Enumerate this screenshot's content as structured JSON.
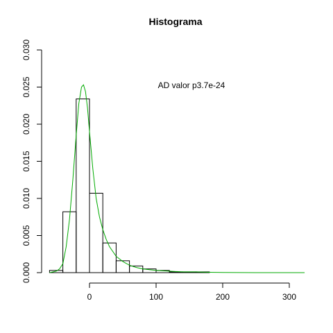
{
  "chart_data": {
    "type": "bar",
    "title": "Histograma",
    "xlabel": "",
    "ylabel": "",
    "annotation": "AD valor p3.7e-24",
    "xlim": [
      -60,
      330
    ],
    "ylim": [
      0,
      0.03
    ],
    "x_ticks": [
      0,
      100,
      200,
      300
    ],
    "x_tick_labels": [
      "0",
      "100",
      "200",
      "300"
    ],
    "y_ticks": [
      0.0,
      0.005,
      0.01,
      0.015,
      0.02,
      0.025,
      0.03
    ],
    "y_tick_labels": [
      "0.000",
      "0.005",
      "0.010",
      "0.015",
      "0.020",
      "0.025",
      "0.030"
    ],
    "bins": [
      {
        "start": -60,
        "end": -40,
        "density": 0.0003
      },
      {
        "start": -40,
        "end": -20,
        "density": 0.0082
      },
      {
        "start": -20,
        "end": 0,
        "density": 0.0234
      },
      {
        "start": 0,
        "end": 20,
        "density": 0.0107
      },
      {
        "start": 20,
        "end": 40,
        "density": 0.004
      },
      {
        "start": 40,
        "end": 60,
        "density": 0.0016
      },
      {
        "start": 60,
        "end": 80,
        "density": 0.0009
      },
      {
        "start": 80,
        "end": 100,
        "density": 0.0005
      },
      {
        "start": 100,
        "end": 120,
        "density": 0.0003
      },
      {
        "start": 120,
        "end": 140,
        "density": 0.0001
      },
      {
        "start": 140,
        "end": 160,
        "density": 0.0001
      },
      {
        "start": 160,
        "end": 180,
        "density": 0.0001
      }
    ],
    "density_curve": {
      "color": "#00aa00",
      "points": [
        [
          -60,
          0.0
        ],
        [
          -50,
          0.0002
        ],
        [
          -45,
          0.0005
        ],
        [
          -40,
          0.0012
        ],
        [
          -35,
          0.0035
        ],
        [
          -30,
          0.0072
        ],
        [
          -25,
          0.0125
        ],
        [
          -20,
          0.0185
        ],
        [
          -16,
          0.0228
        ],
        [
          -12,
          0.025
        ],
        [
          -9,
          0.0253
        ],
        [
          -6,
          0.0244
        ],
        [
          -3,
          0.0222
        ],
        [
          0,
          0.019
        ],
        [
          5,
          0.014
        ],
        [
          10,
          0.01
        ],
        [
          15,
          0.0075
        ],
        [
          20,
          0.0058
        ],
        [
          25,
          0.0045
        ],
        [
          30,
          0.0035
        ],
        [
          40,
          0.0022
        ],
        [
          50,
          0.0015
        ],
        [
          60,
          0.001
        ],
        [
          70,
          0.0007
        ],
        [
          80,
          0.0005
        ],
        [
          90,
          0.0004
        ],
        [
          100,
          0.0003
        ],
        [
          120,
          0.0002
        ],
        [
          140,
          0.0001
        ],
        [
          160,
          0.0001
        ],
        [
          180,
          5e-05
        ],
        [
          200,
          2e-05
        ],
        [
          250,
          0.0
        ],
        [
          300,
          0.0
        ],
        [
          323,
          0.0
        ]
      ]
    },
    "grid": false,
    "legend": "none"
  }
}
